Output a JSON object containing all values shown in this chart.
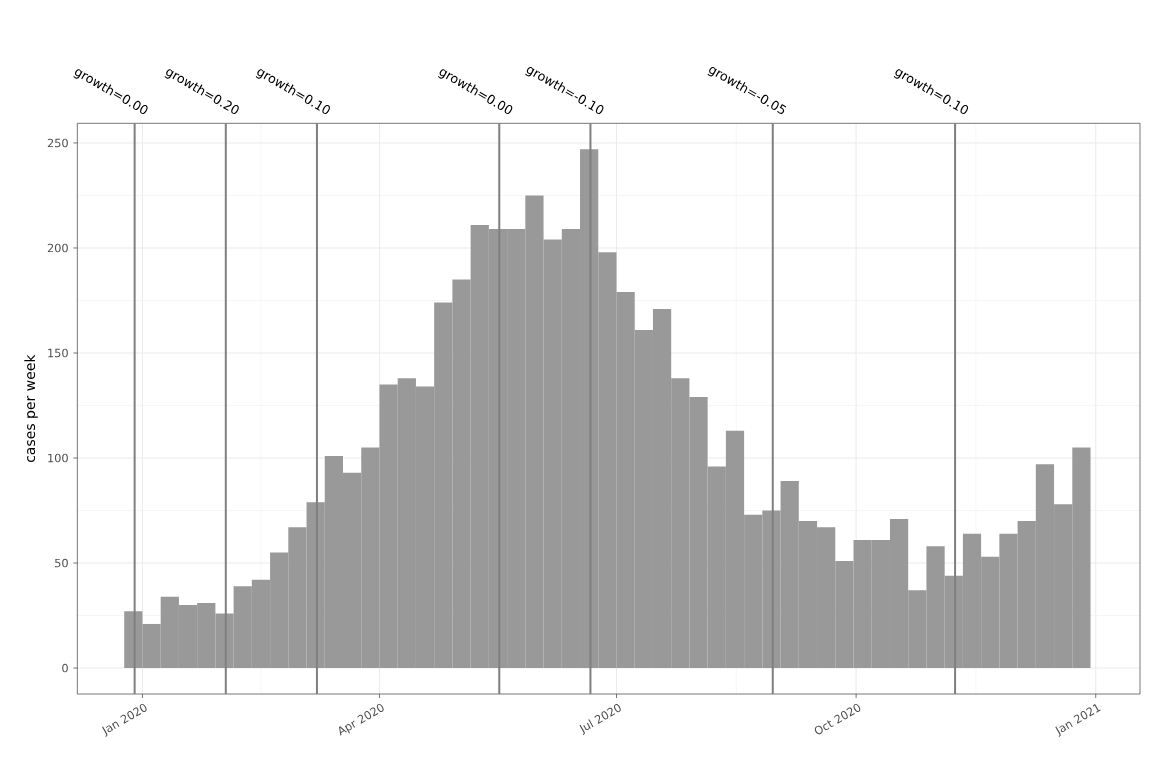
{
  "chart_data": {
    "type": "histogram",
    "ylabel": "cases per week",
    "bins": [
      "2019-12-25",
      "2020-01-01",
      "2020-01-08",
      "2020-01-15",
      "2020-01-22",
      "2020-01-29",
      "2020-02-05",
      "2020-02-12",
      "2020-02-19",
      "2020-02-26",
      "2020-03-04",
      "2020-03-11",
      "2020-03-18",
      "2020-03-25",
      "2020-04-01",
      "2020-04-08",
      "2020-04-15",
      "2020-04-22",
      "2020-04-29",
      "2020-05-06",
      "2020-05-13",
      "2020-05-20",
      "2020-05-27",
      "2020-06-03",
      "2020-06-10",
      "2020-06-17",
      "2020-06-24",
      "2020-07-01",
      "2020-07-08",
      "2020-07-15",
      "2020-07-22",
      "2020-07-29",
      "2020-08-05",
      "2020-08-12",
      "2020-08-19",
      "2020-08-26",
      "2020-09-02",
      "2020-09-09",
      "2020-09-16",
      "2020-09-23",
      "2020-09-30",
      "2020-10-07",
      "2020-10-14",
      "2020-10-21",
      "2020-10-28",
      "2020-11-04",
      "2020-11-11",
      "2020-11-18",
      "2020-11-25",
      "2020-12-02",
      "2020-12-09",
      "2020-12-16",
      "2020-12-23",
      "2020-12-30"
    ],
    "values": [
      27,
      21,
      34,
      30,
      31,
      26,
      39,
      42,
      55,
      67,
      79,
      101,
      93,
      105,
      135,
      138,
      134,
      174,
      185,
      211,
      209,
      209,
      225,
      204,
      209,
      247,
      198,
      179,
      161,
      171,
      138,
      129,
      96,
      113,
      73,
      75,
      89,
      70,
      67,
      51,
      61,
      61,
      71,
      37,
      58,
      44,
      64,
      53,
      64,
      70,
      97,
      78,
      105
    ],
    "color": "#999999",
    "xlim": [
      "2019-12-07",
      "2021-01-18"
    ],
    "xticks": [
      {
        "value": "2020-01-01",
        "label": "Jan 2020"
      },
      {
        "value": "2020-04-01",
        "label": "Apr 2020"
      },
      {
        "value": "2020-07-01",
        "label": "Jul 2020"
      },
      {
        "value": "2020-10-01",
        "label": "Oct 2020"
      },
      {
        "value": "2021-01-01",
        "label": "Jan 2021"
      }
    ],
    "ylim": [
      -12.35,
      259.35
    ],
    "yticks": [
      0,
      50,
      100,
      150,
      200,
      250
    ],
    "grid": true,
    "ref_lines": [
      {
        "axis": "x",
        "value": "2019-12-29",
        "label": "growth=0.00",
        "color": "#7f7f7f"
      },
      {
        "axis": "x",
        "value": "2020-02-02",
        "label": "growth=0.20",
        "color": "#7f7f7f"
      },
      {
        "axis": "x",
        "value": "2020-03-08",
        "label": "growth=0.10",
        "color": "#7f7f7f"
      },
      {
        "axis": "x",
        "value": "2020-05-17",
        "label": "growth=0.00",
        "color": "#7f7f7f"
      },
      {
        "axis": "x",
        "value": "2020-06-21",
        "label": "growth=-0.10",
        "color": "#7f7f7f"
      },
      {
        "axis": "x",
        "value": "2020-08-30",
        "label": "growth=-0.05",
        "color": "#7f7f7f"
      },
      {
        "axis": "x",
        "value": "2020-11-08",
        "label": "growth=0.10",
        "color": "#7f7f7f"
      }
    ]
  }
}
